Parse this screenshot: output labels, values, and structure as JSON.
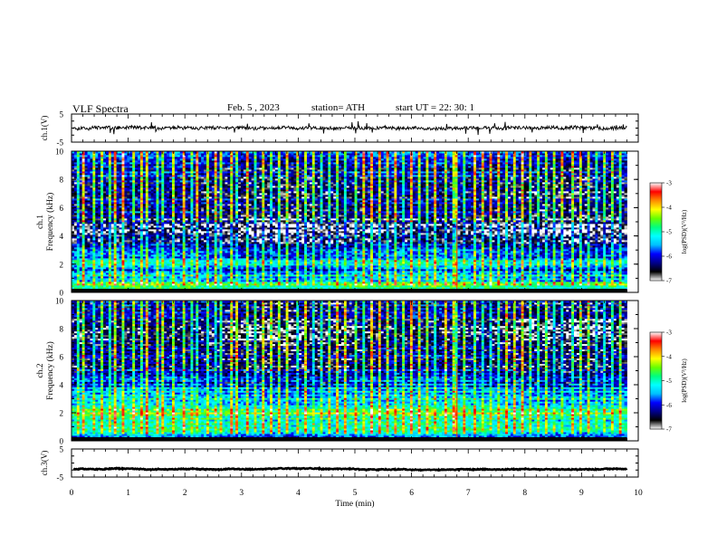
{
  "header": {
    "title": "VLF  Spectra",
    "date": "Feb. 5  , 2023",
    "station": "station= ATH",
    "start": "start  UT  =    22: 30: 1"
  },
  "colors": {
    "spectrum_scale": [
      "#ffffff",
      "#000000",
      "#00008b",
      "#0000ff",
      "#00bfff",
      "#00ffff",
      "#00ff7f",
      "#66ff00",
      "#ffff00",
      "#ff8c00",
      "#ff0000",
      "#ffffff"
    ]
  },
  "chart_data": [
    {
      "type": "line",
      "panel": "ch1-waveform",
      "ylabel": "ch.1(V)",
      "ylim": [
        -5,
        5
      ],
      "yticks": [
        "5",
        "-5"
      ],
      "xlim": [
        0,
        10
      ],
      "x_end": 9.8,
      "baseline": 0,
      "noise_amplitude": 0.6,
      "spike_amplitude": 1.6
    },
    {
      "type": "heatmap",
      "panel": "ch1-spectrogram",
      "ylabel": [
        "ch.1",
        "Frequency  (kHz)"
      ],
      "ylim": [
        0,
        10
      ],
      "yticks": [
        "0",
        "2",
        "4",
        "6",
        "8",
        "10"
      ],
      "xlim": [
        0,
        10
      ],
      "x_end": 9.8,
      "colorbar": {
        "label": "log(PSD)(V²/Hz)",
        "range": [
          -7,
          -3
        ],
        "ticks": [
          "-3",
          "-4",
          "-5",
          "-6",
          "-7"
        ]
      },
      "frequency_profile_khz": [
        {
          "f": 0.0,
          "v": -6.6
        },
        {
          "f": 0.3,
          "v": -5.0
        },
        {
          "f": 0.6,
          "v": -4.6
        },
        {
          "f": 0.9,
          "v": -5.6
        },
        {
          "f": 1.3,
          "v": -5.3
        },
        {
          "f": 1.7,
          "v": -6.0
        },
        {
          "f": 2.0,
          "v": -4.9
        },
        {
          "f": 2.2,
          "v": -5.1
        },
        {
          "f": 2.5,
          "v": -5.6
        },
        {
          "f": 3.0,
          "v": -6.1
        },
        {
          "f": 3.6,
          "v": -6.4
        },
        {
          "f": 4.0,
          "v": -6.7
        },
        {
          "f": 4.5,
          "v": -6.8
        },
        {
          "f": 5.0,
          "v": -6.6
        },
        {
          "f": 6.0,
          "v": -6.2
        },
        {
          "f": 7.0,
          "v": -6.3
        },
        {
          "f": 8.0,
          "v": -6.2
        },
        {
          "f": 9.0,
          "v": -6.1
        },
        {
          "f": 10.0,
          "v": -6.0
        }
      ],
      "sferic_columns_min": [
        0.08,
        0.21,
        0.35,
        0.52,
        0.66,
        0.74,
        0.9,
        1.05,
        1.22,
        1.31,
        1.48,
        1.6,
        1.77,
        1.94,
        2.08,
        2.2,
        2.36,
        2.5,
        2.63,
        2.79,
        2.91,
        3.07,
        3.2,
        3.38,
        3.52,
        3.66,
        3.8,
        3.95,
        4.1,
        4.24,
        4.39,
        4.55,
        4.68,
        4.82,
        4.97,
        5.11,
        5.26,
        5.4,
        5.55,
        5.69,
        5.84,
        5.98,
        6.12,
        6.27,
        6.41,
        6.56,
        6.7,
        6.78,
        6.93,
        7.07,
        7.22,
        7.36,
        7.5,
        7.64,
        7.79,
        7.93,
        8.08,
        8.22,
        8.36,
        8.51,
        8.65,
        8.8,
        8.94,
        9.08,
        9.23,
        9.37,
        9.52,
        9.66
      ]
    },
    {
      "type": "heatmap",
      "panel": "ch2-spectrogram",
      "ylabel": [
        "ch.2",
        "Frequency  (kHz)"
      ],
      "ylim": [
        0,
        10
      ],
      "yticks": [
        "0",
        "2",
        "4",
        "6",
        "8",
        "10"
      ],
      "xlim": [
        0,
        10
      ],
      "x_end": 9.8,
      "colorbar": {
        "label": "log(PSD)(V²/Hz)",
        "range": [
          -7,
          -3
        ],
        "ticks": [
          "-3",
          "-4",
          "-5",
          "-6",
          "-7"
        ]
      },
      "frequency_profile_khz": [
        {
          "f": 0.0,
          "v": -6.6
        },
        {
          "f": 0.4,
          "v": -5.2
        },
        {
          "f": 0.8,
          "v": -4.8
        },
        {
          "f": 1.2,
          "v": -5.1
        },
        {
          "f": 1.6,
          "v": -5.0
        },
        {
          "f": 2.0,
          "v": -4.5
        },
        {
          "f": 2.3,
          "v": -5.0
        },
        {
          "f": 2.8,
          "v": -5.3
        },
        {
          "f": 3.3,
          "v": -5.5
        },
        {
          "f": 4.0,
          "v": -5.9
        },
        {
          "f": 5.0,
          "v": -6.2
        },
        {
          "f": 6.0,
          "v": -6.3
        },
        {
          "f": 7.0,
          "v": -6.5
        },
        {
          "f": 8.0,
          "v": -6.5
        },
        {
          "f": 9.0,
          "v": -6.4
        },
        {
          "f": 10.0,
          "v": -6.3
        }
      ],
      "sferic_columns_min": [
        0.08,
        0.21,
        0.35,
        0.52,
        0.66,
        0.74,
        0.9,
        1.05,
        1.22,
        1.31,
        1.48,
        1.6,
        1.77,
        1.94,
        2.08,
        2.2,
        2.36,
        2.5,
        2.63,
        2.79,
        2.91,
        3.07,
        3.2,
        3.38,
        3.52,
        3.66,
        3.8,
        3.95,
        4.1,
        4.24,
        4.39,
        4.55,
        4.68,
        4.82,
        4.97,
        5.11,
        5.26,
        5.4,
        5.55,
        5.69,
        5.84,
        5.98,
        6.12,
        6.27,
        6.41,
        6.56,
        6.7,
        6.78,
        6.93,
        7.07,
        7.22,
        7.36,
        7.5,
        7.64,
        7.79,
        7.93,
        8.08,
        8.22,
        8.36,
        8.51,
        8.65,
        8.8,
        8.94,
        9.08,
        9.23,
        9.37,
        9.52,
        9.66
      ]
    },
    {
      "type": "line",
      "panel": "ch3-waveform",
      "ylabel": "ch.3(V)",
      "ylim": [
        -5,
        5
      ],
      "yticks": [
        "5",
        "-5"
      ],
      "xlim": [
        0,
        10
      ],
      "x_end": 9.8,
      "baseline": -2.2,
      "noise_amplitude": 0.15,
      "xlabel": "Time  (min)",
      "xticks": [
        "0",
        "1",
        "2",
        "3",
        "4",
        "5",
        "6",
        "7",
        "8",
        "9",
        "10"
      ]
    }
  ]
}
